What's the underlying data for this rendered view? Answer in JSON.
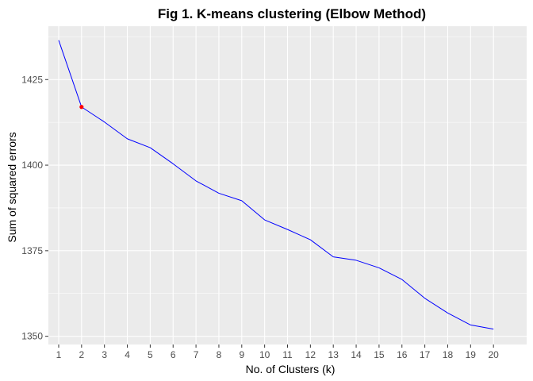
{
  "chart_data": {
    "type": "line",
    "title": "Fig 1. K-means clustering (Elbow Method)",
    "xlabel": "No. of Clusters (k)",
    "ylabel": "Sum of squared errors",
    "x": [
      1,
      2,
      3,
      4,
      5,
      6,
      7,
      8,
      9,
      10,
      11,
      12,
      13,
      14,
      15,
      16,
      17,
      18,
      19,
      20
    ],
    "xlim": [
      0.55,
      21.45
    ],
    "ylim": [
      1347.6,
      1440.6
    ],
    "x_ticks": [
      "1",
      "2",
      "3",
      "4",
      "5",
      "6",
      "7",
      "8",
      "9",
      "10",
      "11",
      "12",
      "13",
      "14",
      "15",
      "16",
      "17",
      "18",
      "19",
      "20"
    ],
    "y_ticks": [
      1350,
      1375,
      1400,
      1425
    ],
    "y_tick_labels": [
      "1350",
      "1375",
      "1400",
      "1425"
    ],
    "series": [
      {
        "values": [
          1436.5,
          1417.0,
          1412.6,
          1407.7,
          1405.1,
          1400.4,
          1395.4,
          1391.8,
          1389.6,
          1384.0,
          1381.2,
          1378.2,
          1373.2,
          1372.2,
          1370.0,
          1366.6,
          1361.1,
          1356.8,
          1353.3,
          1352.1
        ],
        "color": "#0000ff"
      }
    ],
    "highlight": {
      "x": 2,
      "y": 1417.0,
      "color": "#ff0000"
    },
    "panel_background": "#ebebeb",
    "grid": true,
    "grid_color": "#ffffff"
  }
}
